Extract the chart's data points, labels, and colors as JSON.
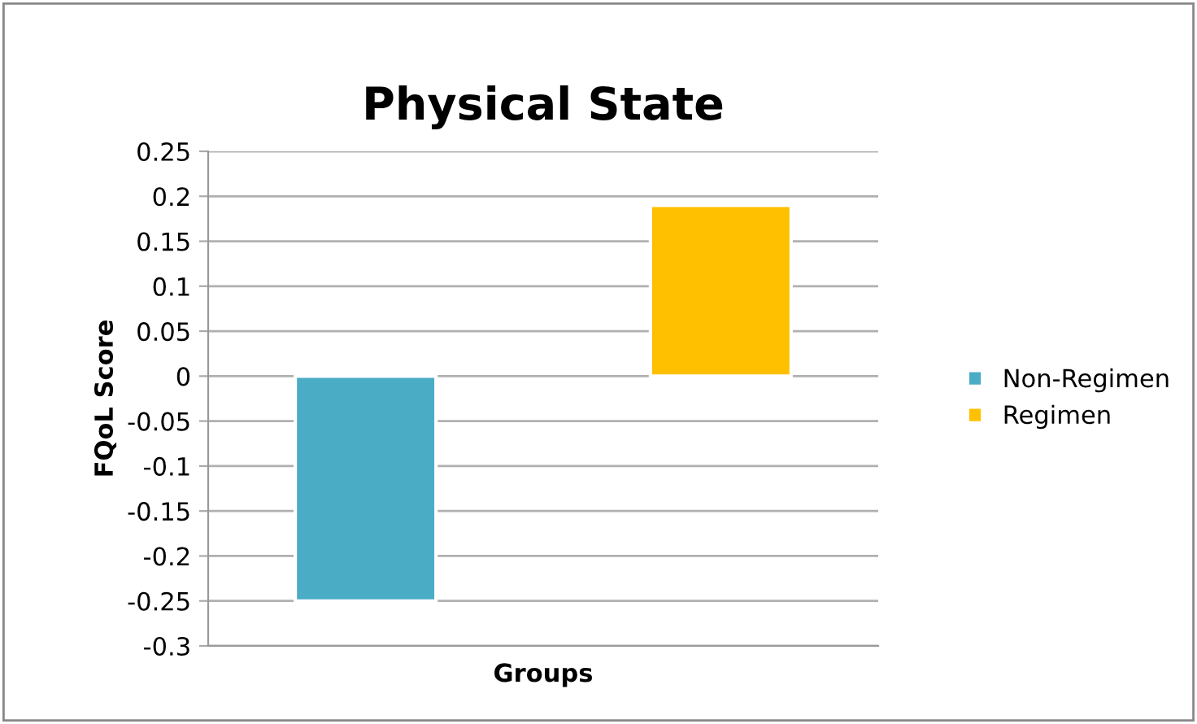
{
  "chart_data": {
    "type": "bar",
    "title": "Physical State",
    "xlabel": "Groups",
    "ylabel": "FQoL Score",
    "categories": [
      null
    ],
    "series": [
      {
        "name": "Non-Regimen",
        "color": "#4bacc6",
        "values": [
          -0.25
        ]
      },
      {
        "name": "Regimen",
        "color": "#ffc000",
        "values": [
          0.19
        ]
      }
    ],
    "ylim": [
      -0.3,
      0.25
    ],
    "yticks": [
      -0.3,
      -0.25,
      -0.2,
      -0.15,
      -0.1,
      -0.05,
      0,
      0.05,
      0.1,
      0.15,
      0.2,
      0.25
    ],
    "grid": "y",
    "legend": "right"
  }
}
